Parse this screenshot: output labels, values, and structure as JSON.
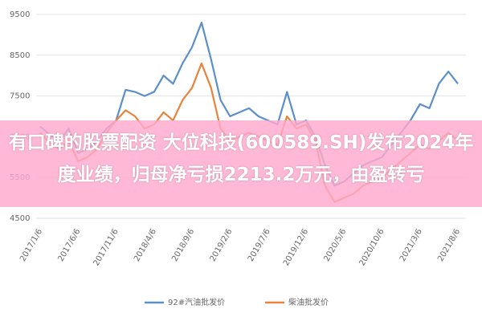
{
  "chart_data": {
    "type": "line",
    "overlay_text": "有口碑的股票配资 大位科技(600589.SH)发布2024年度业绩，归母净亏损2213.2万元，由盈转亏",
    "categories": [
      "2017/1/6",
      null,
      null,
      null,
      "2017/6/6",
      null,
      null,
      null,
      "2017/11/6",
      null,
      null,
      null,
      "2018/4/6",
      null,
      null,
      null,
      "2018/9/6",
      null,
      null,
      null,
      "2019/2/6",
      null,
      null,
      null,
      "2019/7/6",
      null,
      null,
      null,
      "2019/12/6",
      null,
      null,
      null,
      "2020/5/6",
      null,
      null,
      null,
      "2020/10/6",
      null,
      null,
      null,
      "2021/3/6",
      null,
      null,
      null,
      "2021/8/6"
    ],
    "series": [
      {
        "name": "92#汽油批发价",
        "color": "#5b8fcb",
        "values": [
          6750,
          6550,
          6400,
          6700,
          6100,
          6200,
          6400,
          6700,
          6900,
          7650,
          7600,
          7500,
          7600,
          8000,
          7800,
          8300,
          8700,
          9300,
          8400,
          7400,
          7000,
          7100,
          7200,
          7000,
          6900,
          6800,
          7600,
          6800,
          6900,
          6500,
          5800,
          5300,
          5400,
          5600,
          5800,
          5900,
          6000,
          6300,
          6600,
          6900,
          7300,
          7200,
          7800,
          8100,
          7800
        ]
      },
      {
        "name": "柴油批发价",
        "color": "#e8823c",
        "values": [
          6600,
          6350,
          6200,
          6400,
          5900,
          6000,
          6200,
          6600,
          6900,
          7150,
          7000,
          6700,
          6800,
          7100,
          6900,
          7400,
          7700,
          8300,
          7700,
          6700,
          6400,
          6500,
          6600,
          6500,
          6400,
          6300,
          7000,
          6700,
          6800,
          6400,
          5300,
          4900,
          5000,
          5100,
          5300,
          5400,
          5500,
          5700,
          5900,
          6100,
          6300,
          6200,
          6400,
          6600,
          6400
        ]
      }
    ],
    "ylim": [
      4500,
      9500
    ],
    "yticks": [
      4500,
      5500,
      6500,
      7500,
      8500,
      9500
    ],
    "grid": true,
    "legend": "bottom"
  }
}
